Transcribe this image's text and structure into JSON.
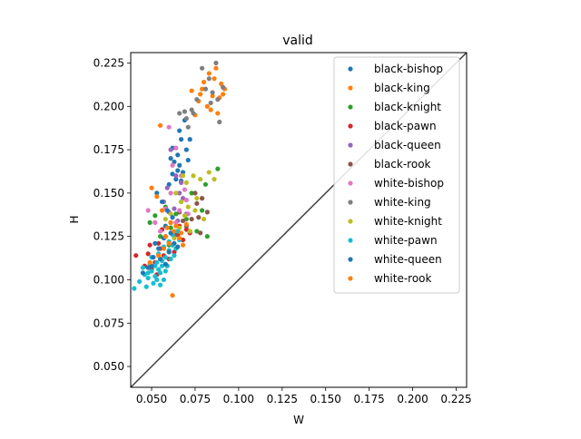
{
  "chart_data": {
    "type": "scatter",
    "title": "valid",
    "xlabel": "W",
    "ylabel": "H",
    "xlim": [
      0.038,
      0.231
    ],
    "ylim": [
      0.038,
      0.231
    ],
    "xticks": [
      "0.050",
      "0.075",
      "0.100",
      "0.125",
      "0.150",
      "0.175",
      "0.200",
      "0.225"
    ],
    "yticks": [
      "0.050",
      "0.075",
      "0.100",
      "0.125",
      "0.150",
      "0.175",
      "0.200",
      "0.225"
    ],
    "reference_line": {
      "from": [
        0.038,
        0.038
      ],
      "to": [
        0.231,
        0.231
      ],
      "color": "#404040"
    },
    "legend_position": "top-right",
    "series": [
      {
        "name": "black-bishop",
        "color": "#1f77b4",
        "points": [
          [
            0.062,
            0.176
          ],
          [
            0.065,
            0.172
          ],
          [
            0.067,
            0.181
          ],
          [
            0.066,
            0.166
          ],
          [
            0.061,
            0.17
          ],
          [
            0.068,
            0.162
          ],
          [
            0.064,
            0.158
          ],
          [
            0.07,
            0.175
          ],
          [
            0.063,
            0.168
          ],
          [
            0.071,
            0.169
          ],
          [
            0.06,
            0.155
          ],
          [
            0.066,
            0.186
          ],
          [
            0.069,
            0.192
          ],
          [
            0.072,
            0.181
          ],
          [
            0.065,
            0.163
          ],
          [
            0.067,
            0.157
          ],
          [
            0.062,
            0.161
          ]
        ]
      },
      {
        "name": "black-king",
        "color": "#ff7f0e",
        "points": [
          [
            0.083,
            0.219
          ],
          [
            0.087,
            0.222
          ],
          [
            0.09,
            0.213
          ],
          [
            0.085,
            0.206
          ],
          [
            0.079,
            0.21
          ],
          [
            0.082,
            0.2
          ],
          [
            0.088,
            0.196
          ],
          [
            0.091,
            0.207
          ],
          [
            0.084,
            0.198
          ],
          [
            0.077,
            0.203
          ],
          [
            0.073,
            0.209
          ],
          [
            0.086,
            0.216
          ],
          [
            0.08,
            0.214
          ],
          [
            0.089,
            0.205
          ],
          [
            0.075,
            0.195
          ],
          [
            0.092,
            0.21
          ],
          [
            0.078,
            0.207
          ]
        ]
      },
      {
        "name": "black-knight",
        "color": "#2ca02c",
        "points": [
          [
            0.052,
            0.137
          ],
          [
            0.058,
            0.142
          ],
          [
            0.061,
            0.13
          ],
          [
            0.055,
            0.125
          ],
          [
            0.049,
            0.133
          ],
          [
            0.064,
            0.138
          ],
          [
            0.067,
            0.145
          ],
          [
            0.07,
            0.135
          ],
          [
            0.073,
            0.15
          ],
          [
            0.079,
            0.14
          ],
          [
            0.082,
            0.125
          ],
          [
            0.076,
            0.128
          ],
          [
            0.088,
            0.164
          ],
          [
            0.081,
            0.155
          ],
          [
            0.06,
            0.12
          ]
        ]
      },
      {
        "name": "black-pawn",
        "color": "#d62728",
        "points": [
          [
            0.048,
            0.115
          ],
          [
            0.052,
            0.11
          ],
          [
            0.055,
            0.118
          ],
          [
            0.05,
            0.106
          ],
          [
            0.046,
            0.108
          ],
          [
            0.057,
            0.114
          ],
          [
            0.06,
            0.112
          ],
          [
            0.054,
            0.121
          ],
          [
            0.058,
            0.125
          ],
          [
            0.062,
            0.12
          ],
          [
            0.065,
            0.126
          ],
          [
            0.068,
            0.123
          ],
          [
            0.07,
            0.129
          ],
          [
            0.063,
            0.116
          ],
          [
            0.053,
            0.103
          ],
          [
            0.049,
            0.12
          ],
          [
            0.059,
            0.108
          ],
          [
            0.066,
            0.131
          ],
          [
            0.072,
            0.127
          ],
          [
            0.041,
            0.114
          ],
          [
            0.056,
            0.129
          ]
        ]
      },
      {
        "name": "black-queen",
        "color": "#9467bd",
        "points": [
          [
            0.061,
            0.175
          ],
          [
            0.064,
            0.16
          ],
          [
            0.059,
            0.153
          ],
          [
            0.066,
            0.15
          ],
          [
            0.068,
            0.147
          ],
          [
            0.063,
            0.141
          ],
          [
            0.07,
            0.138
          ],
          [
            0.065,
            0.134
          ],
          [
            0.057,
            0.145
          ],
          [
            0.06,
            0.139
          ],
          [
            0.067,
            0.156
          ]
        ]
      },
      {
        "name": "black-rook",
        "color": "#8c564b",
        "points": [
          [
            0.061,
            0.133
          ],
          [
            0.066,
            0.139
          ],
          [
            0.07,
            0.131
          ],
          [
            0.073,
            0.135
          ],
          [
            0.076,
            0.144
          ],
          [
            0.079,
            0.147
          ],
          [
            0.078,
            0.127
          ],
          [
            0.072,
            0.128
          ],
          [
            0.068,
            0.134
          ],
          [
            0.064,
            0.126
          ],
          [
            0.075,
            0.15
          ],
          [
            0.082,
            0.139
          ],
          [
            0.077,
            0.136
          ]
        ]
      },
      {
        "name": "white-bishop",
        "color": "#e377c2",
        "points": [
          [
            0.06,
            0.188
          ],
          [
            0.064,
            0.176
          ],
          [
            0.062,
            0.166
          ],
          [
            0.067,
            0.16
          ],
          [
            0.07,
            0.146
          ],
          [
            0.066,
            0.14
          ],
          [
            0.071,
            0.138
          ],
          [
            0.064,
            0.133
          ],
          [
            0.058,
            0.141
          ],
          [
            0.061,
            0.15
          ],
          [
            0.052,
            0.133
          ],
          [
            0.055,
            0.128
          ],
          [
            0.048,
            0.14
          ],
          [
            0.069,
            0.152
          ]
        ]
      },
      {
        "name": "white-king",
        "color": "#7f7f7f",
        "points": [
          [
            0.079,
            0.222
          ],
          [
            0.083,
            0.216
          ],
          [
            0.085,
            0.208
          ],
          [
            0.088,
            0.204
          ],
          [
            0.091,
            0.211
          ],
          [
            0.076,
            0.204
          ],
          [
            0.073,
            0.198
          ],
          [
            0.074,
            0.196
          ],
          [
            0.07,
            0.193
          ],
          [
            0.066,
            0.196
          ],
          [
            0.087,
            0.225
          ],
          [
            0.089,
            0.191
          ],
          [
            0.081,
            0.21
          ],
          [
            0.084,
            0.202
          ],
          [
            0.069,
            0.197
          ],
          [
            0.071,
            0.188
          ]
        ]
      },
      {
        "name": "white-knight",
        "color": "#bcbd22",
        "points": [
          [
            0.068,
            0.16
          ],
          [
            0.07,
            0.156
          ],
          [
            0.074,
            0.16
          ],
          [
            0.078,
            0.158
          ],
          [
            0.083,
            0.162
          ],
          [
            0.086,
            0.158
          ],
          [
            0.064,
            0.15
          ],
          [
            0.067,
            0.145
          ],
          [
            0.071,
            0.142
          ],
          [
            0.061,
            0.138
          ],
          [
            0.075,
            0.14
          ],
          [
            0.08,
            0.135
          ],
          [
            0.066,
            0.13
          ],
          [
            0.063,
            0.124
          ],
          [
            0.072,
            0.128
          ],
          [
            0.058,
            0.135
          ],
          [
            0.069,
            0.137
          ],
          [
            0.076,
            0.147
          ]
        ]
      },
      {
        "name": "white-pawn",
        "color": "#17becf",
        "points": [
          [
            0.04,
            0.095
          ],
          [
            0.043,
            0.099
          ],
          [
            0.046,
            0.103
          ],
          [
            0.048,
            0.101
          ],
          [
            0.05,
            0.105
          ],
          [
            0.052,
            0.108
          ],
          [
            0.054,
            0.106
          ],
          [
            0.056,
            0.111
          ],
          [
            0.058,
            0.113
          ],
          [
            0.06,
            0.117
          ],
          [
            0.062,
            0.12
          ],
          [
            0.064,
            0.118
          ],
          [
            0.066,
            0.123
          ],
          [
            0.053,
            0.11
          ],
          [
            0.055,
            0.104
          ],
          [
            0.057,
            0.1
          ],
          [
            0.059,
            0.108
          ],
          [
            0.061,
            0.112
          ],
          [
            0.063,
            0.114
          ],
          [
            0.047,
            0.096
          ],
          [
            0.051,
            0.098
          ],
          [
            0.045,
            0.107
          ],
          [
            0.049,
            0.109
          ],
          [
            0.05,
            0.113
          ],
          [
            0.054,
            0.115
          ],
          [
            0.057,
            0.119
          ],
          [
            0.06,
            0.122
          ],
          [
            0.062,
            0.126
          ],
          [
            0.065,
            0.128
          ],
          [
            0.048,
            0.104
          ],
          [
            0.052,
            0.102
          ],
          [
            0.055,
            0.097
          ],
          [
            0.058,
            0.105
          ],
          [
            0.053,
            0.1
          ],
          [
            0.056,
            0.108
          ]
        ]
      },
      {
        "name": "white-queen",
        "color": "#1f77b4",
        "points": [
          [
            0.053,
            0.15
          ],
          [
            0.056,
            0.145
          ],
          [
            0.059,
            0.14
          ],
          [
            0.062,
            0.136
          ],
          [
            0.058,
            0.131
          ],
          [
            0.061,
            0.127
          ],
          [
            0.063,
            0.121
          ],
          [
            0.057,
            0.124
          ],
          [
            0.054,
            0.118
          ],
          [
            0.051,
            0.113
          ],
          [
            0.048,
            0.107
          ],
          [
            0.045,
            0.104
          ],
          [
            0.055,
            0.112
          ],
          [
            0.06,
            0.116
          ],
          [
            0.065,
            0.119
          ],
          [
            0.052,
            0.121
          ],
          [
            0.058,
            0.109
          ],
          [
            0.05,
            0.108
          ]
        ]
      },
      {
        "name": "white-rook",
        "color": "#ff7f0e",
        "points": [
          [
            0.055,
            0.189
          ],
          [
            0.05,
            0.153
          ],
          [
            0.053,
            0.148
          ],
          [
            0.056,
            0.14
          ],
          [
            0.061,
            0.133
          ],
          [
            0.063,
            0.128
          ],
          [
            0.066,
            0.124
          ],
          [
            0.068,
            0.12
          ],
          [
            0.058,
            0.125
          ],
          [
            0.06,
            0.121
          ],
          [
            0.057,
            0.118
          ],
          [
            0.054,
            0.114
          ],
          [
            0.062,
            0.091
          ],
          [
            0.064,
            0.131
          ],
          [
            0.067,
            0.127
          ],
          [
            0.049,
            0.11
          ],
          [
            0.059,
            0.13
          ],
          [
            0.07,
            0.132
          ]
        ]
      }
    ]
  }
}
